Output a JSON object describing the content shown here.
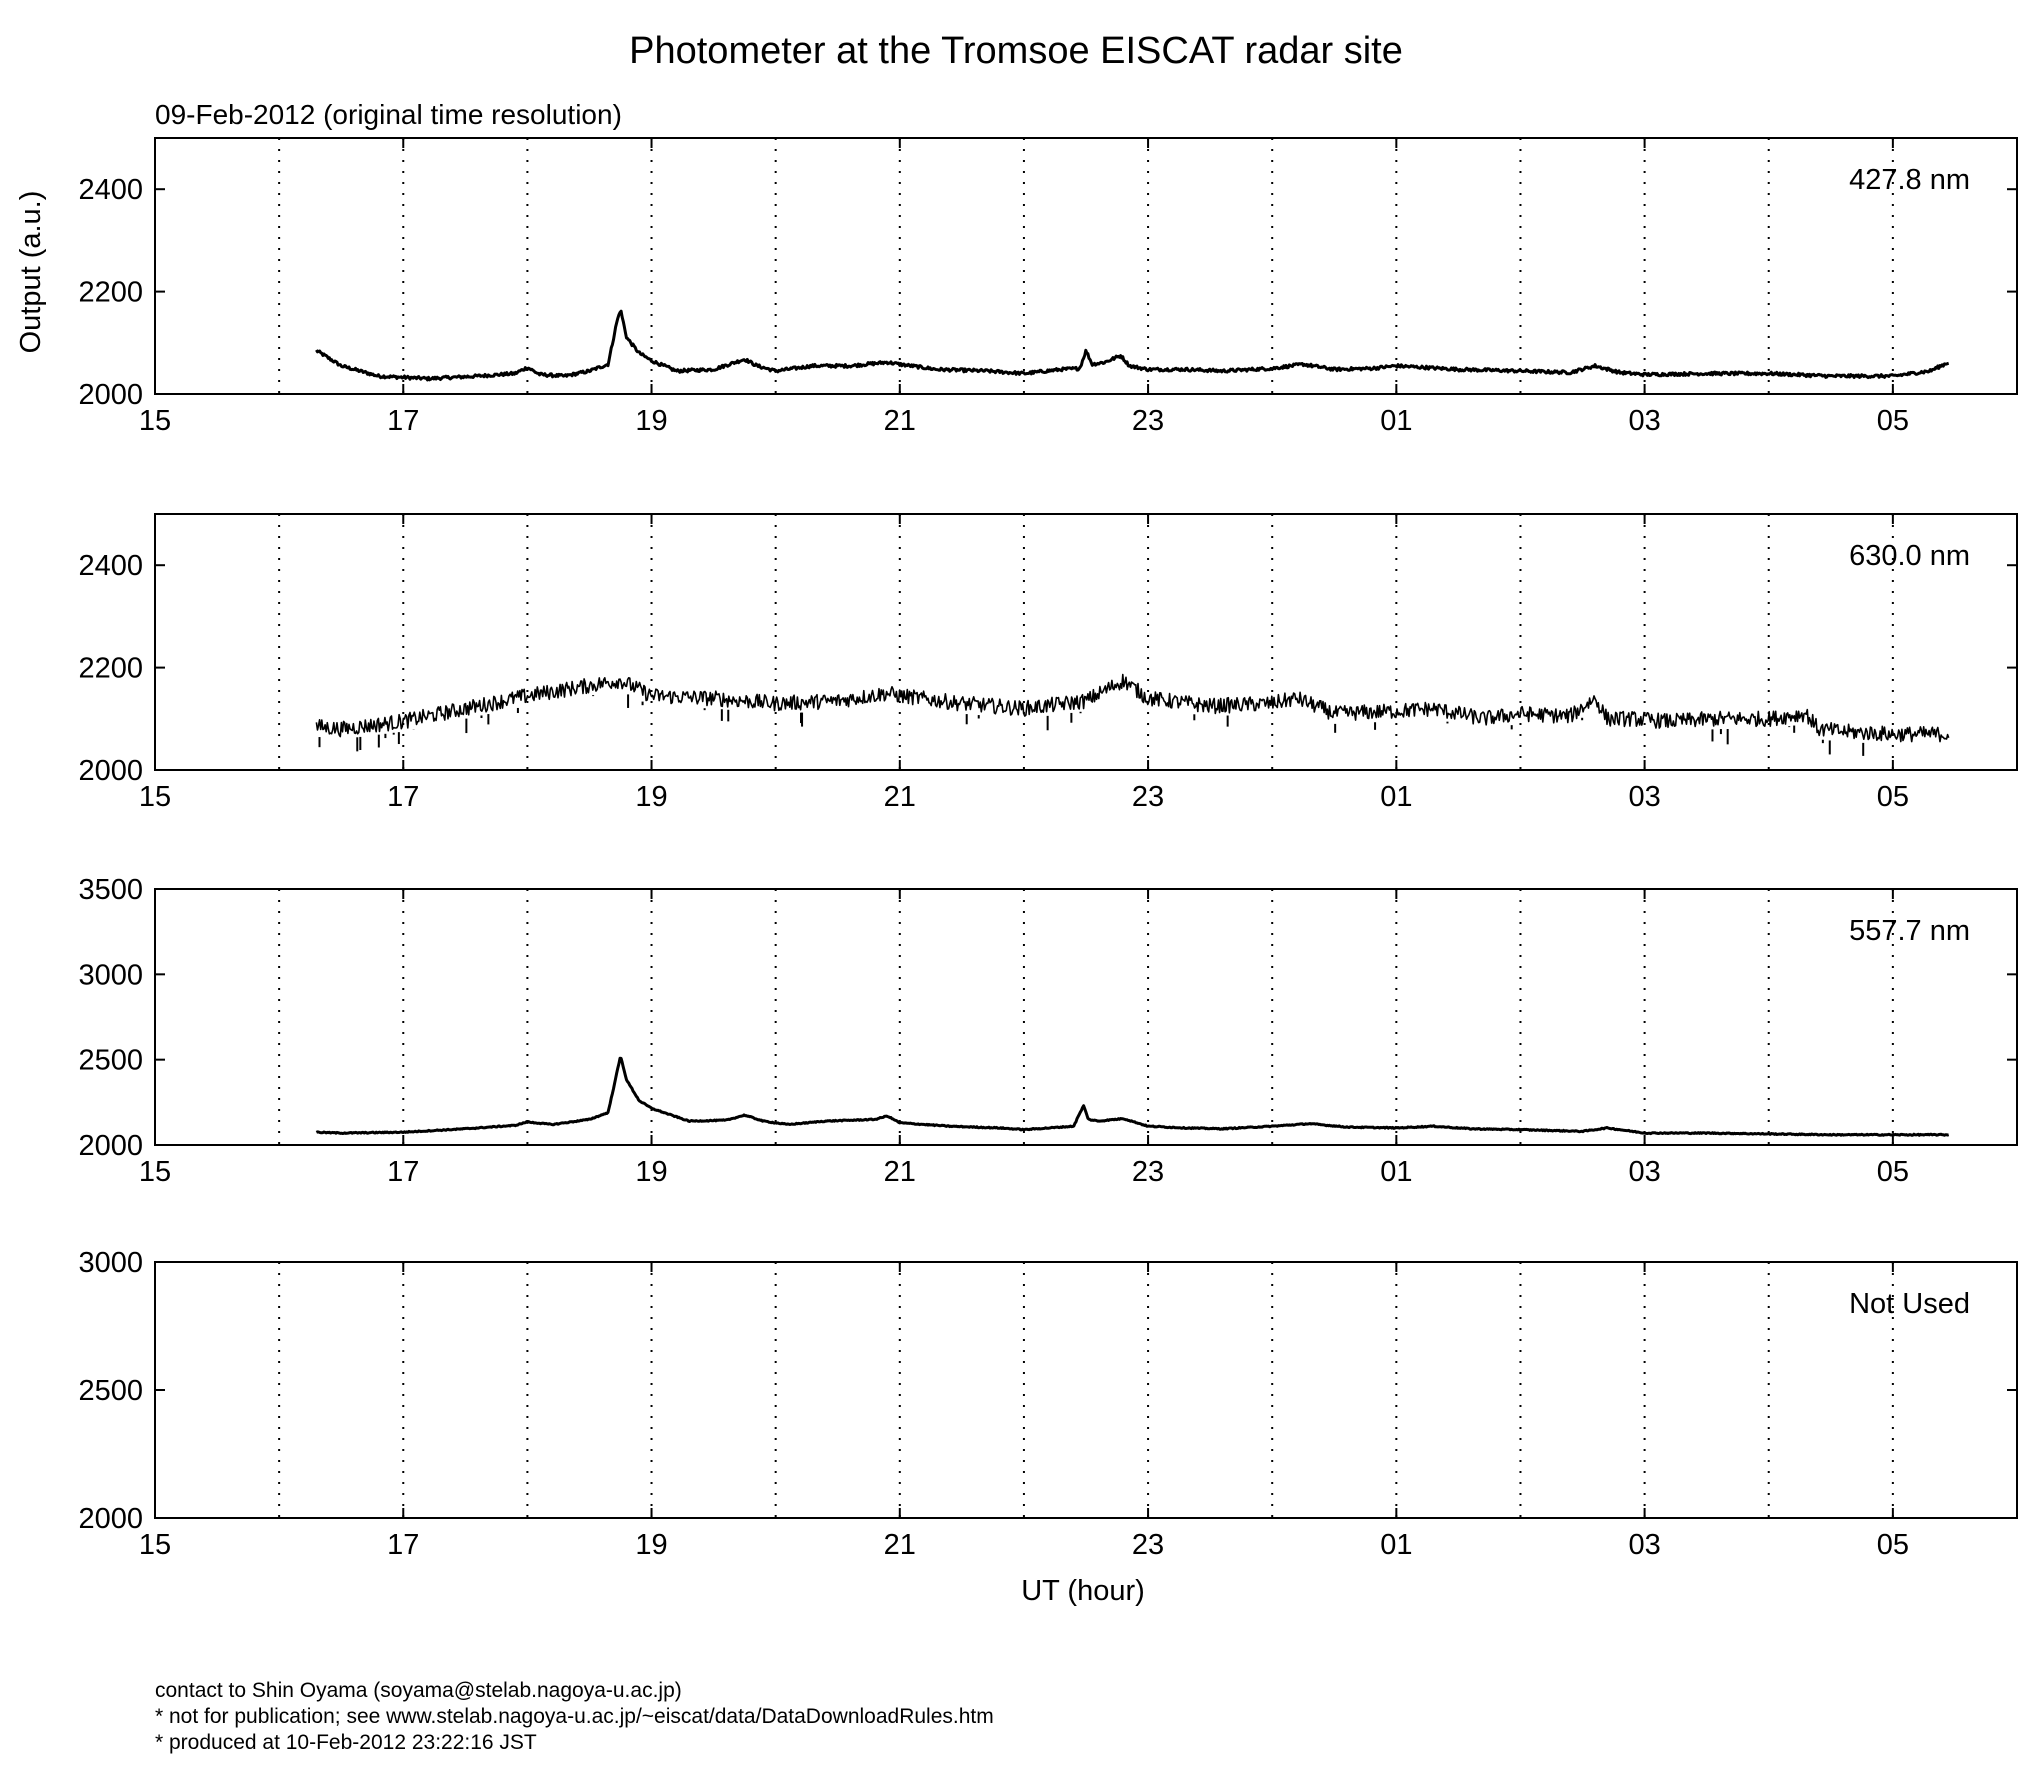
{
  "chart_data": {
    "type": "line",
    "title": "Photometer at the Tromsoe EISCAT radar site",
    "subtitle": "09-Feb-2012 (original time resolution)",
    "xlabel": "UT (hour)",
    "ylabel": "Output (a.u.)",
    "x_tick_labels": [
      "15",
      "17",
      "19",
      "21",
      "23",
      "01",
      "03",
      "05"
    ],
    "xlim_hours": [
      15,
      30
    ],
    "grid": "vertical dotted lines every hour",
    "panels": [
      {
        "name": "427.8 nm",
        "ylim": [
          2000,
          2500
        ],
        "yticks": [
          "2000",
          "2200",
          "2400"
        ],
        "series": [
          {
            "noise": 6,
            "x": [
              16.3,
              16.5,
              16.8,
              17.2,
              17.6,
              17.9,
              18.0,
              18.1,
              18.3,
              18.5,
              18.65,
              18.72,
              18.75,
              18.8,
              18.9,
              19.0,
              19.2,
              19.5,
              19.75,
              19.85,
              20.0,
              20.3,
              20.6,
              20.9,
              21.0,
              21.3,
              21.7,
              22.0,
              22.3,
              22.45,
              22.5,
              22.55,
              22.65,
              22.78,
              22.85,
              23.0,
              23.3,
              23.6,
              24.0,
              24.25,
              24.5,
              24.8,
              25.0,
              25.5,
              26.0,
              26.4,
              26.6,
              26.8,
              27.0,
              27.5,
              28.0,
              28.5,
              29.0,
              29.3,
              29.45
            ],
            "y": [
              2085,
              2055,
              2035,
              2030,
              2035,
              2040,
              2052,
              2038,
              2035,
              2045,
              2058,
              2140,
              2165,
              2110,
              2080,
              2065,
              2045,
              2048,
              2068,
              2055,
              2045,
              2055,
              2055,
              2062,
              2058,
              2048,
              2045,
              2040,
              2048,
              2050,
              2085,
              2058,
              2062,
              2075,
              2055,
              2048,
              2048,
              2045,
              2050,
              2058,
              2048,
              2050,
              2055,
              2048,
              2045,
              2042,
              2055,
              2042,
              2038,
              2040,
              2040,
              2035,
              2035,
              2045,
              2062
            ]
          }
        ]
      },
      {
        "name": "630.0 nm",
        "ylim": [
          2000,
          2500
        ],
        "yticks": [
          "2000",
          "2200",
          "2400"
        ],
        "series": [
          {
            "noise": 30,
            "x": [
              16.3,
              16.5,
              17.0,
              17.5,
              18.0,
              18.5,
              18.75,
              19.0,
              19.5,
              20.0,
              20.5,
              20.9,
              21.0,
              21.5,
              22.0,
              22.5,
              22.8,
              23.0,
              23.5,
              24.0,
              24.2,
              24.5,
              25.0,
              25.3,
              25.7,
              26.0,
              26.4,
              26.6,
              26.7,
              26.9,
              27.2,
              27.6,
              28.0,
              28.3,
              28.4,
              28.6,
              29.0,
              29.45
            ],
            "y": [
              2085,
              2080,
              2095,
              2120,
              2145,
              2165,
              2175,
              2145,
              2140,
              2130,
              2135,
              2150,
              2145,
              2130,
              2120,
              2135,
              2175,
              2140,
              2125,
              2130,
              2140,
              2110,
              2115,
              2120,
              2100,
              2110,
              2105,
              2140,
              2100,
              2100,
              2095,
              2100,
              2100,
              2110,
              2080,
              2075,
              2070,
              2070
            ]
          }
        ]
      },
      {
        "name": "557.7 nm",
        "ylim": [
          2000,
          3500
        ],
        "yticks": [
          "2000",
          "2500",
          "3000",
          "3500"
        ],
        "series": [
          {
            "noise": 6,
            "x": [
              16.3,
              16.5,
              17.0,
              17.5,
              17.9,
              18.0,
              18.2,
              18.5,
              18.65,
              18.72,
              18.75,
              18.8,
              18.9,
              19.0,
              19.3,
              19.6,
              19.75,
              19.9,
              20.1,
              20.4,
              20.8,
              20.9,
              21.0,
              21.4,
              21.8,
              22.0,
              22.4,
              22.48,
              22.52,
              22.6,
              22.8,
              23.0,
              23.3,
              23.6,
              24.0,
              24.3,
              24.6,
              25.0,
              25.3,
              25.6,
              26.0,
              26.5,
              26.7,
              27.0,
              27.5,
              28.0,
              28.5,
              29.0,
              29.45
            ],
            "y": [
              2075,
              2070,
              2075,
              2095,
              2115,
              2135,
              2120,
              2150,
              2190,
              2420,
              2520,
              2380,
              2260,
              2215,
              2140,
              2145,
              2175,
              2140,
              2120,
              2140,
              2150,
              2170,
              2130,
              2110,
              2100,
              2090,
              2110,
              2230,
              2150,
              2140,
              2155,
              2110,
              2100,
              2095,
              2110,
              2125,
              2105,
              2100,
              2110,
              2095,
              2090,
              2080,
              2100,
              2070,
              2070,
              2065,
              2060,
              2060,
              2060
            ]
          }
        ]
      },
      {
        "name": "Not Used",
        "ylim": [
          2000,
          3000
        ],
        "yticks": [
          "2000",
          "2500",
          "3000"
        ],
        "series": []
      }
    ]
  },
  "footer": {
    "contact": "contact to Shin Oyama (soyama@stelab.nagoya-u.ac.jp)",
    "notice": "* not for publication; see www.stelab.nagoya-u.ac.jp/~eiscat/data/DataDownloadRules.htm",
    "produced": "* produced at 10-Feb-2012 23:22:16 JST"
  }
}
